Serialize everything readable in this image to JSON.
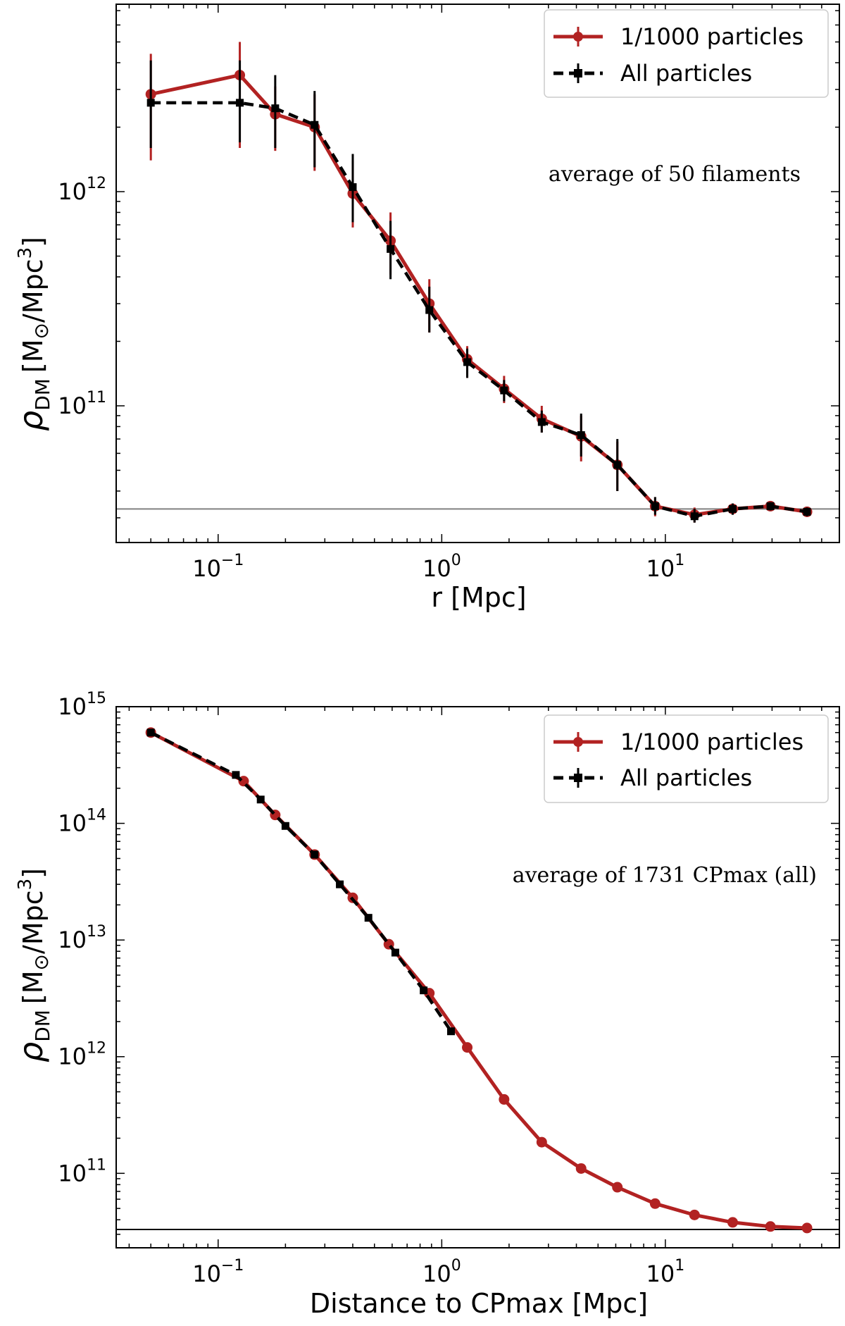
{
  "chart_data": [
    {
      "type": "line",
      "xscale": "log",
      "yscale": "log",
      "xlim": [
        0.035,
        60
      ],
      "ylim": [
        23000000000.0,
        7500000000000.0
      ],
      "xlabel": "r [Mpc]",
      "ylabel_main": "ρ",
      "ylabel_sub": "DM",
      "ylabel_unit": "[M",
      "ylabel_sun": "⊙",
      "ylabel_rest": "/Mpc",
      "ylabel_exp": "3",
      "ylabel_close": "]",
      "xticks": [
        {
          "base": "10",
          "exp": "−1",
          "value": 0.1
        },
        {
          "base": "10",
          "exp": "0",
          "value": 1
        },
        {
          "base": "10",
          "exp": "1",
          "value": 10
        }
      ],
      "yticks": [
        {
          "base": "10",
          "exp": "11",
          "value": 100000000000.0
        },
        {
          "base": "10",
          "exp": "12",
          "value": 1000000000000.0
        }
      ],
      "annotation": "average of 50 filaments",
      "legend_position": "top-right",
      "hline": 33000000000.0,
      "hline_color": "#808080",
      "series": [
        {
          "name": "1/1000 particles",
          "color": "#b22222",
          "style": "solid",
          "marker": "circle",
          "x": [
            0.05,
            0.125,
            0.18,
            0.27,
            0.4,
            0.59,
            0.88,
            1.3,
            1.9,
            2.8,
            4.2,
            6.1,
            9.0,
            13.5,
            20,
            29.5,
            43
          ],
          "y": [
            2850000000000.0,
            3500000000000.0,
            2300000000000.0,
            2000000000000.0,
            980000000000.0,
            590000000000.0,
            300000000000.0,
            165000000000.0,
            120000000000.0,
            87000000000.0,
            72000000000.0,
            53000000000.0,
            34000000000.0,
            31000000000.0,
            33000000000.0,
            34000000000.0,
            32000000000.0
          ],
          "err_low": [
            1400000000000.0,
            1600000000000.0,
            1550000000000.0,
            1250000000000.0,
            680000000000.0,
            410000000000.0,
            220000000000.0,
            135000000000.0,
            103000000000.0,
            75000000000.0,
            55000000000.0,
            40000000000.0,
            30500000000.0,
            28500000000.0,
            31000000000.0,
            32500000000.0,
            30500000000.0
          ],
          "err_high": [
            4400000000000.0,
            5000000000000.0,
            3100000000000.0,
            2850000000000.0,
            1400000000000.0,
            800000000000.0,
            390000000000.0,
            190000000000.0,
            138000000000.0,
            100000000000.0,
            90000000000.0,
            68000000000.0,
            37500000000.0,
            33500000000.0,
            35000000000.0,
            35500000000.0,
            33500000000.0
          ]
        },
        {
          "name": "All particles",
          "color": "#000000",
          "style": "dashed",
          "marker": "square",
          "x": [
            0.05,
            0.125,
            0.18,
            0.27,
            0.4,
            0.59,
            0.88,
            1.3,
            1.9,
            2.8,
            4.2,
            6.1,
            9.0,
            13.5,
            20,
            29.5,
            43
          ],
          "y": [
            2600000000000.0,
            2600000000000.0,
            2450000000000.0,
            2050000000000.0,
            1050000000000.0,
            540000000000.0,
            280000000000.0,
            160000000000.0,
            118000000000.0,
            84000000000.0,
            73000000000.0,
            53000000000.0,
            34000000000.0,
            30500000000.0,
            33000000000.0,
            34000000000.0,
            32000000000.0
          ],
          "err_low": [
            1600000000000.0,
            1700000000000.0,
            1600000000000.0,
            1300000000000.0,
            720000000000.0,
            390000000000.0,
            220000000000.0,
            135000000000.0,
            105000000000.0,
            75000000000.0,
            58000000000.0,
            40000000000.0,
            31000000000.0,
            28500000000.0,
            31000000000.0,
            32500000000.0,
            30500000000.0
          ],
          "err_high": [
            4100000000000.0,
            4100000000000.0,
            3500000000000.0,
            2950000000000.0,
            1500000000000.0,
            730000000000.0,
            360000000000.0,
            185000000000.0,
            132000000000.0,
            95000000000.0,
            92000000000.0,
            70000000000.0,
            37500000000.0,
            33000000000.0,
            35000000000.0,
            35500000000.0,
            33500000000.0
          ]
        }
      ]
    },
    {
      "type": "line",
      "xscale": "log",
      "yscale": "log",
      "xlim": [
        0.035,
        60
      ],
      "ylim": [
        23000000000.0,
        1000000000000000.0
      ],
      "xlabel": "Distance to CPmax [Mpc]",
      "ylabel_main": "ρ",
      "ylabel_sub": "DM",
      "ylabel_unit": "[M",
      "ylabel_sun": "⊙",
      "ylabel_rest": "/Mpc",
      "ylabel_exp": "3",
      "ylabel_close": "]",
      "xticks": [
        {
          "base": "10",
          "exp": "−1",
          "value": 0.1
        },
        {
          "base": "10",
          "exp": "0",
          "value": 1
        },
        {
          "base": "10",
          "exp": "1",
          "value": 10
        }
      ],
      "yticks": [
        {
          "base": "10",
          "exp": "11",
          "value": 100000000000.0
        },
        {
          "base": "10",
          "exp": "12",
          "value": 1000000000000.0
        },
        {
          "base": "10",
          "exp": "13",
          "value": 10000000000000.0
        },
        {
          "base": "10",
          "exp": "14",
          "value": 100000000000000.0
        },
        {
          "base": "10",
          "exp": "15",
          "value": 1000000000000000.0
        }
      ],
      "annotation": "average of 1731 CPmax (all)",
      "legend_position": "top-right",
      "hline": 33000000000.0,
      "hline_color": "#000000",
      "series": [
        {
          "name": "1/1000 particles",
          "color": "#b22222",
          "style": "solid",
          "marker": "circle",
          "x": [
            0.05,
            0.13,
            0.18,
            0.27,
            0.4,
            0.58,
            0.88,
            1.3,
            1.9,
            2.8,
            4.2,
            6.1,
            9.0,
            13.5,
            20,
            29.5,
            43
          ],
          "y": [
            600000000000000.0,
            230000000000000.0,
            118000000000000.0,
            54000000000000.0,
            23000000000000.0,
            9200000000000.0,
            3500000000000.0,
            1200000000000.0,
            430000000000.0,
            185000000000.0,
            110000000000.0,
            76000000000.0,
            55000000000.0,
            44000000000.0,
            38000000000.0,
            35000000000.0,
            34000000000.0
          ]
        },
        {
          "name": "All particles",
          "color": "#000000",
          "style": "dashed",
          "marker": "square",
          "x": [
            0.05,
            0.12,
            0.155,
            0.2,
            0.27,
            0.35,
            0.47,
            0.62,
            0.83,
            1.1
          ],
          "y": [
            600000000000000.0,
            260000000000000.0,
            160000000000000.0,
            95000000000000.0,
            54000000000000.0,
            30000000000000.0,
            15500000000000.0,
            7800000000000.0,
            3700000000000.0,
            1650000000000.0
          ]
        }
      ]
    }
  ]
}
